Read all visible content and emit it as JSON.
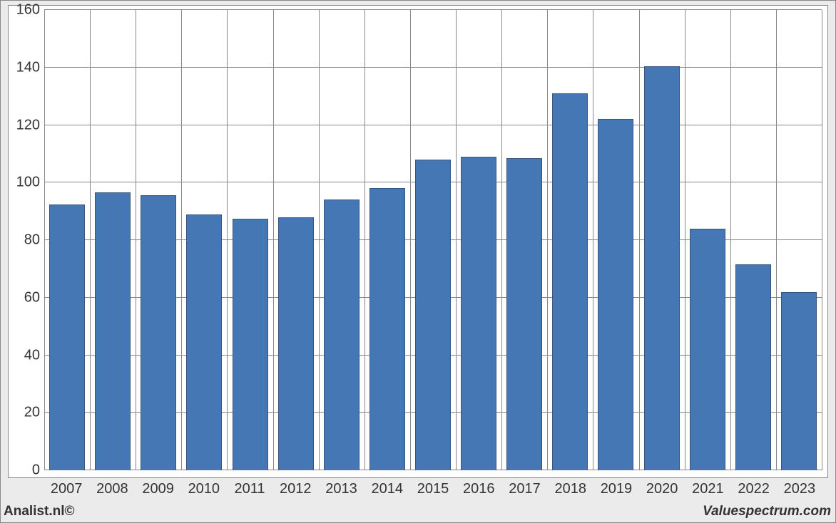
{
  "chart": {
    "type": "bar",
    "categories": [
      "2007",
      "2008",
      "2009",
      "2010",
      "2011",
      "2012",
      "2013",
      "2014",
      "2015",
      "2016",
      "2017",
      "2018",
      "2019",
      "2020",
      "2021",
      "2022",
      "2023"
    ],
    "values": [
      92.5,
      96.5,
      95.5,
      89,
      87.5,
      88,
      94,
      98,
      108,
      109,
      108.5,
      131,
      122,
      140.5,
      84,
      71.5,
      62
    ],
    "bar_color": "#4577b4",
    "bar_border_color": "#34557f",
    "bar_border_width": 1,
    "bar_width_ratio": 0.78,
    "ylim": [
      0,
      160
    ],
    "ytick_step": 20,
    "yticks": [
      0,
      20,
      40,
      60,
      80,
      100,
      120,
      140,
      160
    ],
    "grid_color": "#888888",
    "plot_background": "#ffffff",
    "frame_background": "#ebebeb",
    "tick_fontsize": 20,
    "tick_color": "#333333"
  },
  "credits": {
    "left": "Analist.nl©",
    "right": "Valuespectrum.com"
  }
}
